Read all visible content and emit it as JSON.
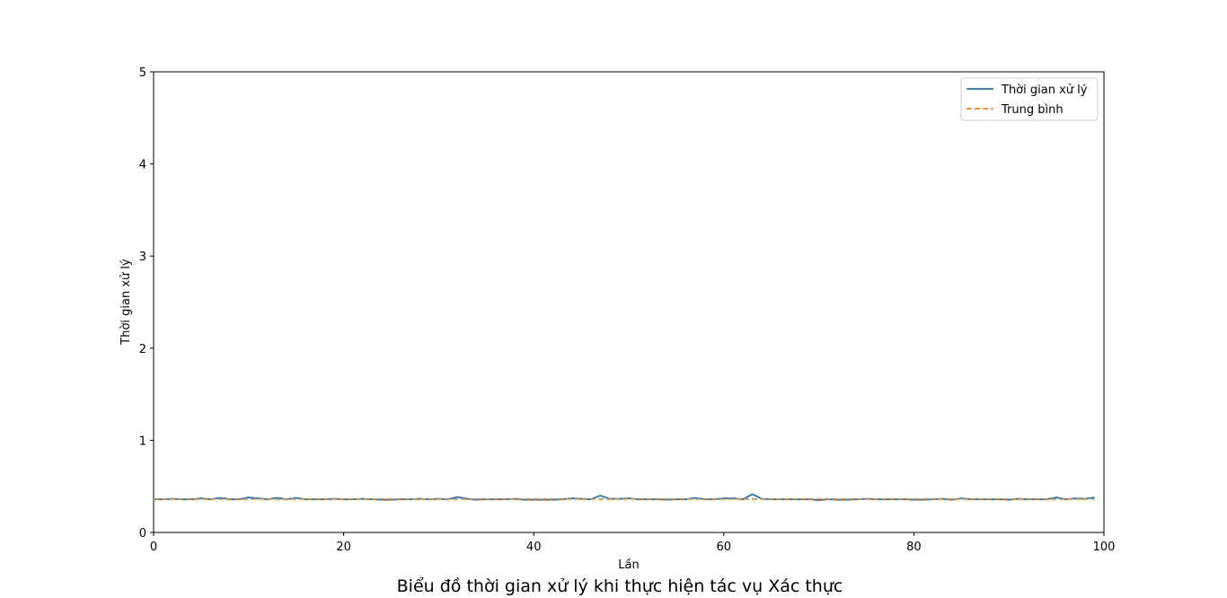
{
  "caption": "Biểu đồ thời gian xử lý khi thực hiện tác vụ Xác thực",
  "colors": {
    "primary_line": "#1f77b4",
    "mean_line": "#ff7f0e"
  },
  "chart_data": {
    "type": "line",
    "title": "",
    "xlabel": "Lần",
    "ylabel": "Thời gian xử lý",
    "xlim": [
      0,
      100
    ],
    "ylim": [
      0,
      5
    ],
    "xticks": [
      0,
      20,
      40,
      60,
      80,
      100
    ],
    "yticks": [
      0,
      1,
      2,
      3,
      4,
      5
    ],
    "grid": false,
    "legend_position": "top-right",
    "series": [
      {
        "name": "Thời gian xử lý",
        "style": "solid",
        "x": [
          0,
          1,
          2,
          3,
          4,
          5,
          6,
          7,
          8,
          9,
          10,
          11,
          12,
          13,
          14,
          15,
          16,
          17,
          18,
          19,
          20,
          21,
          22,
          23,
          24,
          25,
          26,
          27,
          28,
          29,
          30,
          31,
          32,
          33,
          34,
          35,
          36,
          37,
          38,
          39,
          40,
          41,
          42,
          43,
          44,
          45,
          46,
          47,
          48,
          49,
          50,
          51,
          52,
          53,
          54,
          55,
          56,
          57,
          58,
          59,
          60,
          61,
          62,
          63,
          64,
          65,
          66,
          67,
          68,
          69,
          70,
          71,
          72,
          73,
          74,
          75,
          76,
          77,
          78,
          79,
          80,
          81,
          82,
          83,
          84,
          85,
          86,
          87,
          88,
          89,
          90,
          91,
          92,
          93,
          94,
          95,
          96,
          97,
          98,
          99
        ],
        "values": [
          0.36,
          0.36,
          0.365,
          0.36,
          0.36,
          0.37,
          0.36,
          0.375,
          0.36,
          0.36,
          0.38,
          0.37,
          0.36,
          0.375,
          0.36,
          0.375,
          0.36,
          0.36,
          0.36,
          0.365,
          0.36,
          0.36,
          0.365,
          0.36,
          0.355,
          0.355,
          0.36,
          0.36,
          0.365,
          0.36,
          0.365,
          0.36,
          0.385,
          0.365,
          0.355,
          0.36,
          0.36,
          0.36,
          0.365,
          0.355,
          0.355,
          0.355,
          0.355,
          0.36,
          0.37,
          0.365,
          0.36,
          0.4,
          0.365,
          0.365,
          0.37,
          0.36,
          0.36,
          0.36,
          0.355,
          0.36,
          0.36,
          0.375,
          0.36,
          0.36,
          0.37,
          0.37,
          0.36,
          0.415,
          0.365,
          0.36,
          0.36,
          0.36,
          0.36,
          0.36,
          0.35,
          0.36,
          0.355,
          0.355,
          0.36,
          0.365,
          0.36,
          0.36,
          0.36,
          0.36,
          0.355,
          0.355,
          0.36,
          0.365,
          0.355,
          0.37,
          0.36,
          0.36,
          0.36,
          0.36,
          0.355,
          0.365,
          0.36,
          0.36,
          0.36,
          0.38,
          0.36,
          0.37,
          0.365,
          0.38
        ]
      },
      {
        "name": "Trung bình",
        "style": "dashed",
        "x": [
          0,
          99
        ],
        "values": [
          0.363,
          0.363
        ]
      }
    ]
  }
}
